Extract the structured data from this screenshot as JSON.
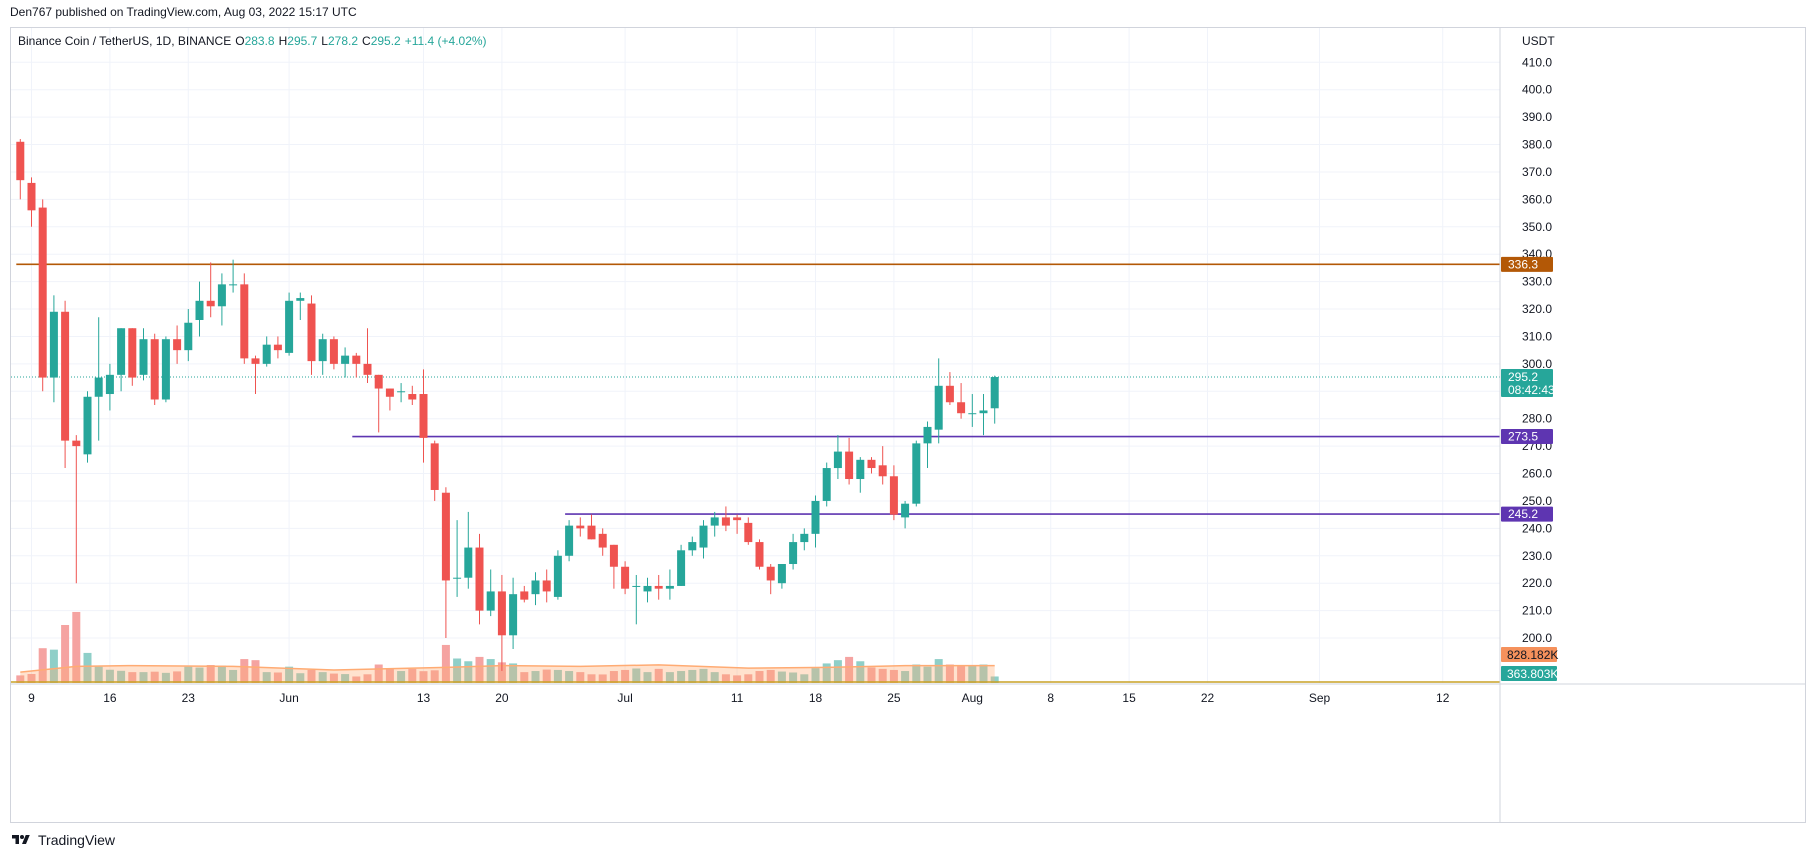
{
  "header": {
    "publish_line": "Den767 published on TradingView.com, Aug 03, 2022 15:17 UTC"
  },
  "legend": {
    "symbol": "Binance Coin / TetherUS, 1D, BINANCE",
    "o_label": "O",
    "o_value": "283.8",
    "h_label": "H",
    "h_value": "295.7",
    "l_label": "L",
    "l_value": "278.2",
    "c_label": "C",
    "c_value": "295.2",
    "change": "+11.4 (+4.02%)"
  },
  "footer": {
    "brand": "TradingView",
    "logo_icon": "tradingview-logo-icon"
  },
  "colors": {
    "up": "#26a69a",
    "down": "#ef5350",
    "up_vol": "#8fcfc8",
    "down_vol": "#f5a3a1",
    "resistance_line": "#b35806",
    "support_line": "#5e35b1",
    "volume_ma": "#ffab73",
    "grid": "#f0f3fa",
    "current_line": "#26a69a"
  },
  "chart_data": {
    "type": "candlestick",
    "currency": "USDT",
    "price_axis": {
      "range": [
        183.6,
        422.5
      ],
      "ticks": [
        200.0,
        210.0,
        220.0,
        230.0,
        240.0,
        250.0,
        260.0,
        270.0,
        280.0,
        290.0,
        300.0,
        310.0,
        320.0,
        330.0,
        340.0,
        350.0,
        360.0,
        370.0,
        380.0,
        390.0,
        400.0,
        410.0
      ],
      "tick_labels": [
        "200.0",
        "210.0",
        "220.0",
        "230.0",
        "240.0",
        "250.0",
        "260.0",
        "270.0",
        "280.0",
        "290.0",
        "300.0",
        "310.0",
        "320.0",
        "330.0",
        "340.0",
        "350.0",
        "360.0",
        "370.0",
        "380.0",
        "390.0",
        "400.0",
        "410.0"
      ]
    },
    "time_axis": {
      "start_date": "2022-05-09",
      "visible_range": [
        "2022-05-09",
        "2022-09-23"
      ],
      "tick_dates": [
        "2022-05-09",
        "2022-05-16",
        "2022-05-23",
        "2022-06-01",
        "2022-06-13",
        "2022-06-20",
        "2022-07-01",
        "2022-07-11",
        "2022-07-18",
        "2022-07-25",
        "2022-08-01",
        "2022-08-08",
        "2022-08-15",
        "2022-08-22",
        "2022-09-01",
        "2022-09-12"
      ],
      "tick_labels": [
        "9",
        "16",
        "23",
        "Jun",
        "13",
        "20",
        "Jul",
        "11",
        "18",
        "25",
        "Aug",
        "8",
        "15",
        "22",
        "Sep",
        "12"
      ]
    },
    "grid": true,
    "series": [
      {
        "date": "2022-05-08",
        "o": 381.0,
        "h": 382.0,
        "l": 360.0,
        "c": 367.0,
        "v": 105
      },
      {
        "date": "2022-05-09",
        "o": 366.0,
        "h": 368.0,
        "l": 350.0,
        "c": 356.0,
        "v": 124
      },
      {
        "date": "2022-05-10",
        "o": 357.0,
        "h": 360.0,
        "l": 290.0,
        "c": 295.0,
        "v": 480
      },
      {
        "date": "2022-05-11",
        "o": 295.0,
        "h": 325.0,
        "l": 286.0,
        "c": 319.0,
        "v": 460
      },
      {
        "date": "2022-05-12",
        "o": 319.0,
        "h": 323.0,
        "l": 262.0,
        "c": 272.0,
        "v": 800
      },
      {
        "date": "2022-05-13",
        "o": 272.0,
        "h": 274.0,
        "l": 220.0,
        "c": 270.0,
        "v": 980
      },
      {
        "date": "2022-05-14",
        "o": 267.0,
        "h": 290.0,
        "l": 264.0,
        "c": 288.0,
        "v": 415
      },
      {
        "date": "2022-05-15",
        "o": 288.0,
        "h": 317.0,
        "l": 272.0,
        "c": 295.0,
        "v": 225
      },
      {
        "date": "2022-05-16",
        "o": 289.0,
        "h": 300.0,
        "l": 283.0,
        "c": 296.0,
        "v": 183
      },
      {
        "date": "2022-05-17",
        "o": 296.0,
        "h": 313.0,
        "l": 290.0,
        "c": 313.0,
        "v": 168
      },
      {
        "date": "2022-05-18",
        "o": 313.0,
        "h": 313.0,
        "l": 292.0,
        "c": 295.0,
        "v": 150
      },
      {
        "date": "2022-05-19",
        "o": 296.0,
        "h": 313.0,
        "l": 294.0,
        "c": 309.0,
        "v": 150
      },
      {
        "date": "2022-05-20",
        "o": 309.0,
        "h": 311.0,
        "l": 285.0,
        "c": 287.0,
        "v": 156
      },
      {
        "date": "2022-05-21",
        "o": 287.0,
        "h": 310.0,
        "l": 286.0,
        "c": 309.0,
        "v": 140
      },
      {
        "date": "2022-05-22",
        "o": 309.0,
        "h": 314.0,
        "l": 300.0,
        "c": 305.0,
        "v": 160
      },
      {
        "date": "2022-05-23",
        "o": 305.0,
        "h": 320.0,
        "l": 301.0,
        "c": 315.0,
        "v": 225
      },
      {
        "date": "2022-05-24",
        "o": 316.0,
        "h": 330.0,
        "l": 310.0,
        "c": 323.0,
        "v": 213
      },
      {
        "date": "2022-05-25",
        "o": 323.0,
        "h": 337.0,
        "l": 317.0,
        "c": 321.0,
        "v": 248
      },
      {
        "date": "2022-05-26",
        "o": 321.0,
        "h": 333.0,
        "l": 314.0,
        "c": 329.0,
        "v": 240
      },
      {
        "date": "2022-05-27",
        "o": 329.0,
        "h": 338.0,
        "l": 326.0,
        "c": 329.0,
        "v": 180
      },
      {
        "date": "2022-05-28",
        "o": 329.0,
        "h": 333.0,
        "l": 300.0,
        "c": 302.0,
        "v": 330
      },
      {
        "date": "2022-05-29",
        "o": 302.0,
        "h": 303.0,
        "l": 289.0,
        "c": 300.0,
        "v": 315
      },
      {
        "date": "2022-05-30",
        "o": 300.0,
        "h": 310.0,
        "l": 299.0,
        "c": 307.0,
        "v": 150
      },
      {
        "date": "2022-05-31",
        "o": 307.0,
        "h": 310.0,
        "l": 302.0,
        "c": 305.0,
        "v": 145
      },
      {
        "date": "2022-06-01",
        "o": 304.0,
        "h": 326.0,
        "l": 303.0,
        "c": 323.0,
        "v": 225
      },
      {
        "date": "2022-06-02",
        "o": 323.0,
        "h": 326.0,
        "l": 316.0,
        "c": 324.0,
        "v": 135
      },
      {
        "date": "2022-06-03",
        "o": 322.0,
        "h": 325.0,
        "l": 296.0,
        "c": 301.0,
        "v": 180
      },
      {
        "date": "2022-06-04",
        "o": 301.0,
        "h": 311.0,
        "l": 296.0,
        "c": 309.0,
        "v": 150
      },
      {
        "date": "2022-06-05",
        "o": 309.0,
        "h": 310.0,
        "l": 298.0,
        "c": 300.0,
        "v": 130
      },
      {
        "date": "2022-06-06",
        "o": 300.0,
        "h": 306.0,
        "l": 295.0,
        "c": 303.0,
        "v": 123
      },
      {
        "date": "2022-06-07",
        "o": 303.0,
        "h": 304.0,
        "l": 295.0,
        "c": 300.0,
        "v": 90
      },
      {
        "date": "2022-06-08",
        "o": 300.0,
        "h": 313.0,
        "l": 293.0,
        "c": 296.0,
        "v": 120
      },
      {
        "date": "2022-06-09",
        "o": 296.0,
        "h": 296.0,
        "l": 275.0,
        "c": 291.0,
        "v": 255
      },
      {
        "date": "2022-06-10",
        "o": 291.0,
        "h": 291.0,
        "l": 283.0,
        "c": 288.0,
        "v": 195
      },
      {
        "date": "2022-06-11",
        "o": 290.0,
        "h": 293.0,
        "l": 286.0,
        "c": 290.0,
        "v": 165
      },
      {
        "date": "2022-06-12",
        "o": 289.0,
        "h": 292.0,
        "l": 285.0,
        "c": 287.0,
        "v": 195
      },
      {
        "date": "2022-06-13",
        "o": 289.0,
        "h": 298.0,
        "l": 264.0,
        "c": 273.0,
        "v": 163
      },
      {
        "date": "2022-06-14",
        "o": 271.0,
        "h": 272.0,
        "l": 250.0,
        "c": 254.0,
        "v": 175
      },
      {
        "date": "2022-06-15",
        "o": 253.0,
        "h": 255.0,
        "l": 200.0,
        "c": 221.0,
        "v": 525
      },
      {
        "date": "2022-06-16",
        "o": 222.0,
        "h": 243.0,
        "l": 215.0,
        "c": 222.0,
        "v": 338
      },
      {
        "date": "2022-06-17",
        "o": 222.0,
        "h": 246.0,
        "l": 218.0,
        "c": 233.0,
        "v": 300
      },
      {
        "date": "2022-06-18",
        "o": 233.0,
        "h": 238.0,
        "l": 205.0,
        "c": 210.0,
        "v": 360
      },
      {
        "date": "2022-06-19",
        "o": 210.0,
        "h": 225.0,
        "l": 208.0,
        "c": 217.0,
        "v": 330
      },
      {
        "date": "2022-06-20",
        "o": 217.0,
        "h": 223.0,
        "l": 188.0,
        "c": 201.0,
        "v": 285
      },
      {
        "date": "2022-06-21",
        "o": 201.0,
        "h": 222.0,
        "l": 196.0,
        "c": 216.0,
        "v": 270
      },
      {
        "date": "2022-06-22",
        "o": 217.0,
        "h": 219.0,
        "l": 213.0,
        "c": 214.0,
        "v": 150
      },
      {
        "date": "2022-06-23",
        "o": 216.0,
        "h": 224.0,
        "l": 212.0,
        "c": 221.0,
        "v": 165
      },
      {
        "date": "2022-06-24",
        "o": 221.0,
        "h": 225.0,
        "l": 213.0,
        "c": 217.0,
        "v": 185
      },
      {
        "date": "2022-06-25",
        "o": 215.0,
        "h": 232.0,
        "l": 214.0,
        "c": 230.0,
        "v": 180
      },
      {
        "date": "2022-06-26",
        "o": 230.0,
        "h": 243.0,
        "l": 228.0,
        "c": 241.0,
        "v": 165
      },
      {
        "date": "2022-06-27",
        "o": 241.0,
        "h": 244.0,
        "l": 237.0,
        "c": 240.0,
        "v": 150
      },
      {
        "date": "2022-06-28",
        "o": 241.0,
        "h": 245.0,
        "l": 236.0,
        "c": 236.0,
        "v": 120
      },
      {
        "date": "2022-06-29",
        "o": 238.0,
        "h": 240.0,
        "l": 230.0,
        "c": 233.0,
        "v": 118
      },
      {
        "date": "2022-06-30",
        "o": 234.0,
        "h": 234.0,
        "l": 218.0,
        "c": 226.0,
        "v": 165
      },
      {
        "date": "2022-07-01",
        "o": 226.0,
        "h": 228.0,
        "l": 216.0,
        "c": 218.0,
        "v": 180
      },
      {
        "date": "2022-07-02",
        "o": 219.0,
        "h": 223.0,
        "l": 205.0,
        "c": 219.0,
        "v": 200
      },
      {
        "date": "2022-07-03",
        "o": 217.0,
        "h": 222.0,
        "l": 213.0,
        "c": 219.0,
        "v": 150
      },
      {
        "date": "2022-07-04",
        "o": 219.0,
        "h": 223.0,
        "l": 214.0,
        "c": 218.0,
        "v": 195
      },
      {
        "date": "2022-07-05",
        "o": 218.0,
        "h": 225.0,
        "l": 214.0,
        "c": 219.0,
        "v": 150
      },
      {
        "date": "2022-07-06",
        "o": 219.0,
        "h": 234.0,
        "l": 219.0,
        "c": 232.0,
        "v": 165
      },
      {
        "date": "2022-07-07",
        "o": 232.0,
        "h": 237.0,
        "l": 230.0,
        "c": 235.0,
        "v": 180
      },
      {
        "date": "2022-07-08",
        "o": 233.0,
        "h": 243.0,
        "l": 229.0,
        "c": 241.0,
        "v": 195
      },
      {
        "date": "2022-07-09",
        "o": 241.0,
        "h": 246.0,
        "l": 237.0,
        "c": 244.0,
        "v": 150
      },
      {
        "date": "2022-07-10",
        "o": 244.0,
        "h": 248.0,
        "l": 239.0,
        "c": 241.0,
        "v": 120
      },
      {
        "date": "2022-07-11",
        "o": 244.0,
        "h": 245.0,
        "l": 238.0,
        "c": 243.0,
        "v": 105
      },
      {
        "date": "2022-07-12",
        "o": 242.0,
        "h": 244.0,
        "l": 234.0,
        "c": 235.0,
        "v": 120
      },
      {
        "date": "2022-07-13",
        "o": 235.0,
        "h": 236.0,
        "l": 225.0,
        "c": 226.0,
        "v": 165
      },
      {
        "date": "2022-07-14",
        "o": 226.0,
        "h": 227.0,
        "l": 216.0,
        "c": 221.0,
        "v": 180
      },
      {
        "date": "2022-07-15",
        "o": 220.0,
        "h": 227.0,
        "l": 218.0,
        "c": 227.0,
        "v": 158
      },
      {
        "date": "2022-07-16",
        "o": 227.0,
        "h": 238.0,
        "l": 225.0,
        "c": 235.0,
        "v": 145
      },
      {
        "date": "2022-07-17",
        "o": 235.0,
        "h": 240.0,
        "l": 232.0,
        "c": 238.0,
        "v": 120
      },
      {
        "date": "2022-07-18",
        "o": 238.0,
        "h": 252.0,
        "l": 233.0,
        "c": 250.0,
        "v": 205
      },
      {
        "date": "2022-07-19",
        "o": 250.0,
        "h": 264.0,
        "l": 248.0,
        "c": 262.0,
        "v": 270
      },
      {
        "date": "2022-07-20",
        "o": 262.0,
        "h": 274.0,
        "l": 258.0,
        "c": 268.0,
        "v": 315
      },
      {
        "date": "2022-07-21",
        "o": 268.0,
        "h": 273.0,
        "l": 256.0,
        "c": 258.0,
        "v": 360
      },
      {
        "date": "2022-07-22",
        "o": 258.0,
        "h": 266.0,
        "l": 253.0,
        "c": 265.0,
        "v": 300
      },
      {
        "date": "2022-07-23",
        "o": 265.0,
        "h": 266.0,
        "l": 260.0,
        "c": 262.0,
        "v": 215
      },
      {
        "date": "2022-07-24",
        "o": 263.0,
        "h": 270.0,
        "l": 256.0,
        "c": 259.0,
        "v": 195
      },
      {
        "date": "2022-07-25",
        "o": 259.0,
        "h": 263.0,
        "l": 243.0,
        "c": 245.0,
        "v": 180
      },
      {
        "date": "2022-07-26",
        "o": 244.0,
        "h": 250.0,
        "l": 240.0,
        "c": 249.0,
        "v": 165
      },
      {
        "date": "2022-07-27",
        "o": 249.0,
        "h": 272.0,
        "l": 248.0,
        "c": 271.0,
        "v": 255
      },
      {
        "date": "2022-07-28",
        "o": 271.0,
        "h": 279.0,
        "l": 262.0,
        "c": 277.0,
        "v": 225
      },
      {
        "date": "2022-07-29",
        "o": 276.0,
        "h": 302.0,
        "l": 271.0,
        "c": 292.0,
        "v": 330
      },
      {
        "date": "2022-07-30",
        "o": 292.0,
        "h": 297.0,
        "l": 285.0,
        "c": 286.0,
        "v": 255
      },
      {
        "date": "2022-07-31",
        "o": 286.0,
        "h": 293.0,
        "l": 280.0,
        "c": 282.0,
        "v": 240
      },
      {
        "date": "2022-08-01",
        "o": 282.0,
        "h": 289.0,
        "l": 277.0,
        "c": 282.0,
        "v": 240
      },
      {
        "date": "2022-08-02",
        "o": 282.0,
        "h": 289.0,
        "l": 274.0,
        "c": 283.0,
        "v": 255
      },
      {
        "date": "2022-08-03",
        "o": 283.8,
        "h": 295.7,
        "l": 278.2,
        "c": 295.2,
        "v": 90
      }
    ],
    "volume_ma": [
      {
        "date": "2022-05-08",
        "v": 150
      },
      {
        "date": "2022-05-13",
        "v": 230
      },
      {
        "date": "2022-05-18",
        "v": 240
      },
      {
        "date": "2022-05-27",
        "v": 230
      },
      {
        "date": "2022-06-05",
        "v": 180
      },
      {
        "date": "2022-06-15",
        "v": 215
      },
      {
        "date": "2022-06-20",
        "v": 240
      },
      {
        "date": "2022-06-27",
        "v": 230
      },
      {
        "date": "2022-07-04",
        "v": 250
      },
      {
        "date": "2022-07-12",
        "v": 205
      },
      {
        "date": "2022-07-19",
        "v": 215
      },
      {
        "date": "2022-07-26",
        "v": 240
      },
      {
        "date": "2022-08-03",
        "v": 240
      }
    ],
    "horizontal_levels": [
      {
        "price": 336.3,
        "label": "336.3",
        "color": "#b35806",
        "from": "2022-05-08"
      },
      {
        "price": 273.5,
        "label": "273.5",
        "color": "#5e35b1",
        "from": "2022-06-07"
      },
      {
        "price": 245.2,
        "label": "245.2",
        "color": "#5e35b1",
        "from": "2022-06-26"
      }
    ],
    "current_price": {
      "price": 295.2,
      "label": "295.2",
      "countdown": "08:42:43"
    },
    "volume_labels": {
      "ma": "828.182K",
      "current": "363.803K"
    }
  }
}
